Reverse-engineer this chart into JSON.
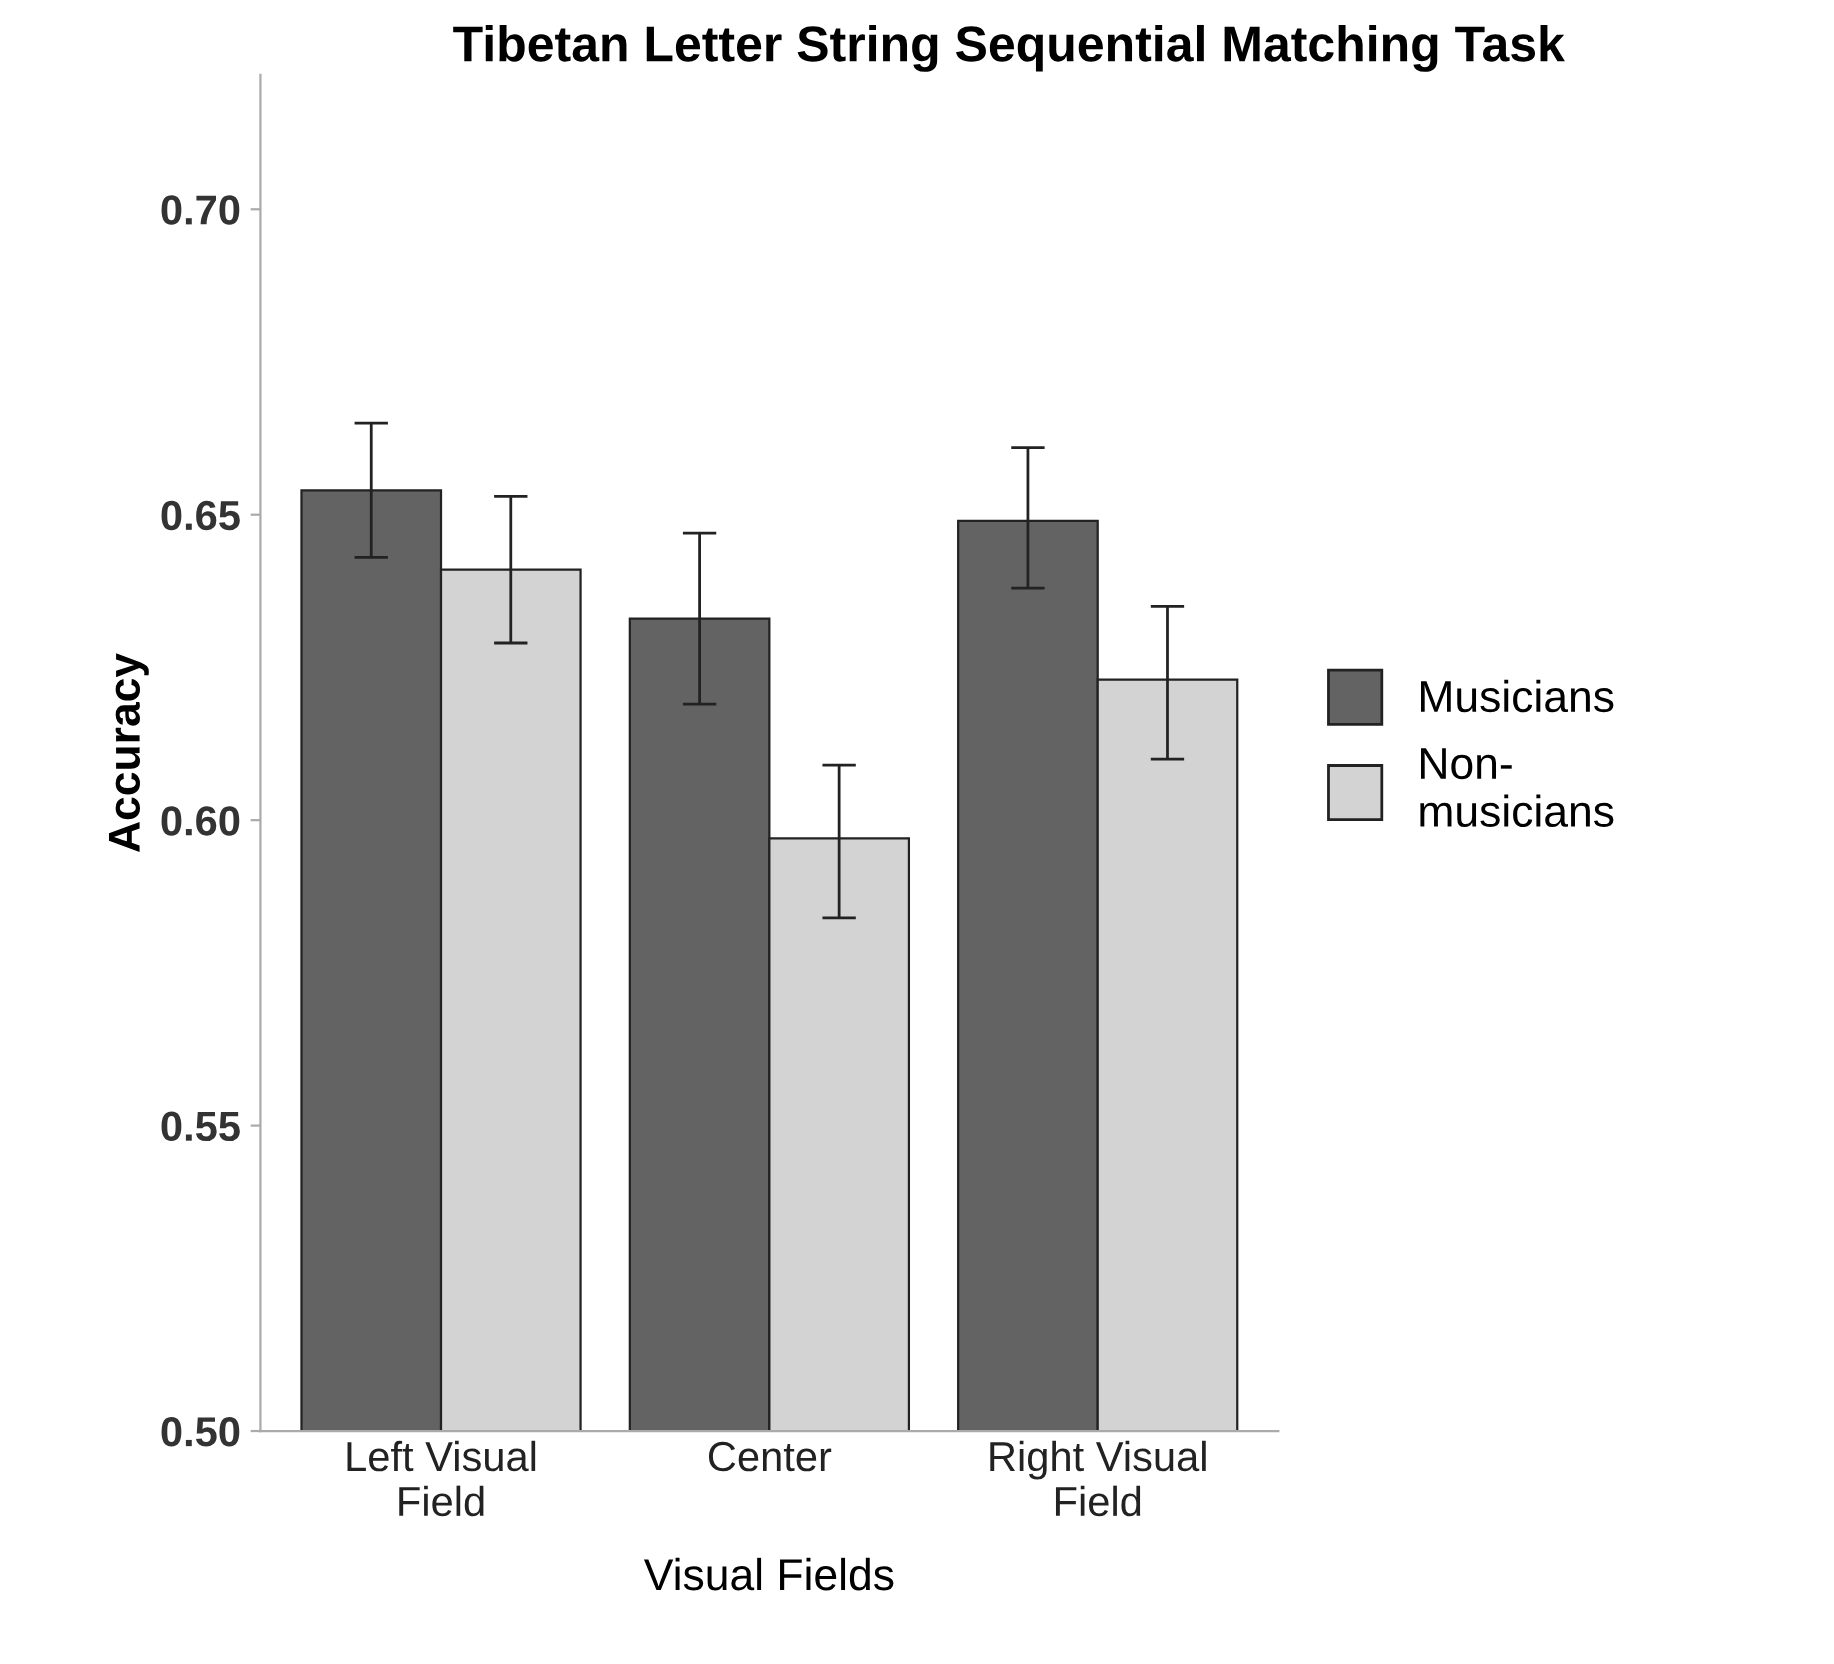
{
  "chart_data": {
    "type": "bar",
    "title": "Tibetan Letter String Sequential Matching Task",
    "xlabel": "Visual Fields",
    "ylabel": "Accuracy",
    "categories": [
      "Left Visual Field",
      "Center",
      "Right Visual Field"
    ],
    "series": [
      {
        "name": "Musicians",
        "color": "#636363",
        "values": [
          0.654,
          0.633,
          0.649
        ],
        "errors": [
          [
            0.643,
            0.665
          ],
          [
            0.619,
            0.647
          ],
          [
            0.638,
            0.661
          ]
        ]
      },
      {
        "name": "Non-musicians",
        "color": "#d3d3d3",
        "values": [
          0.641,
          0.597,
          0.623
        ],
        "errors": [
          [
            0.629,
            0.653
          ],
          [
            0.584,
            0.609
          ],
          [
            0.61,
            0.635
          ]
        ]
      }
    ],
    "ylim": [
      0.5,
      0.722
    ],
    "yticks": [
      {
        "value": 0.5,
        "label": "0.50"
      },
      {
        "value": 0.55,
        "label": "0.55"
      },
      {
        "value": 0.6,
        "label": "0.60"
      },
      {
        "value": 0.65,
        "label": "0.65"
      },
      {
        "value": 0.7,
        "label": "0.70"
      }
    ],
    "grid": false,
    "legend": "right"
  }
}
